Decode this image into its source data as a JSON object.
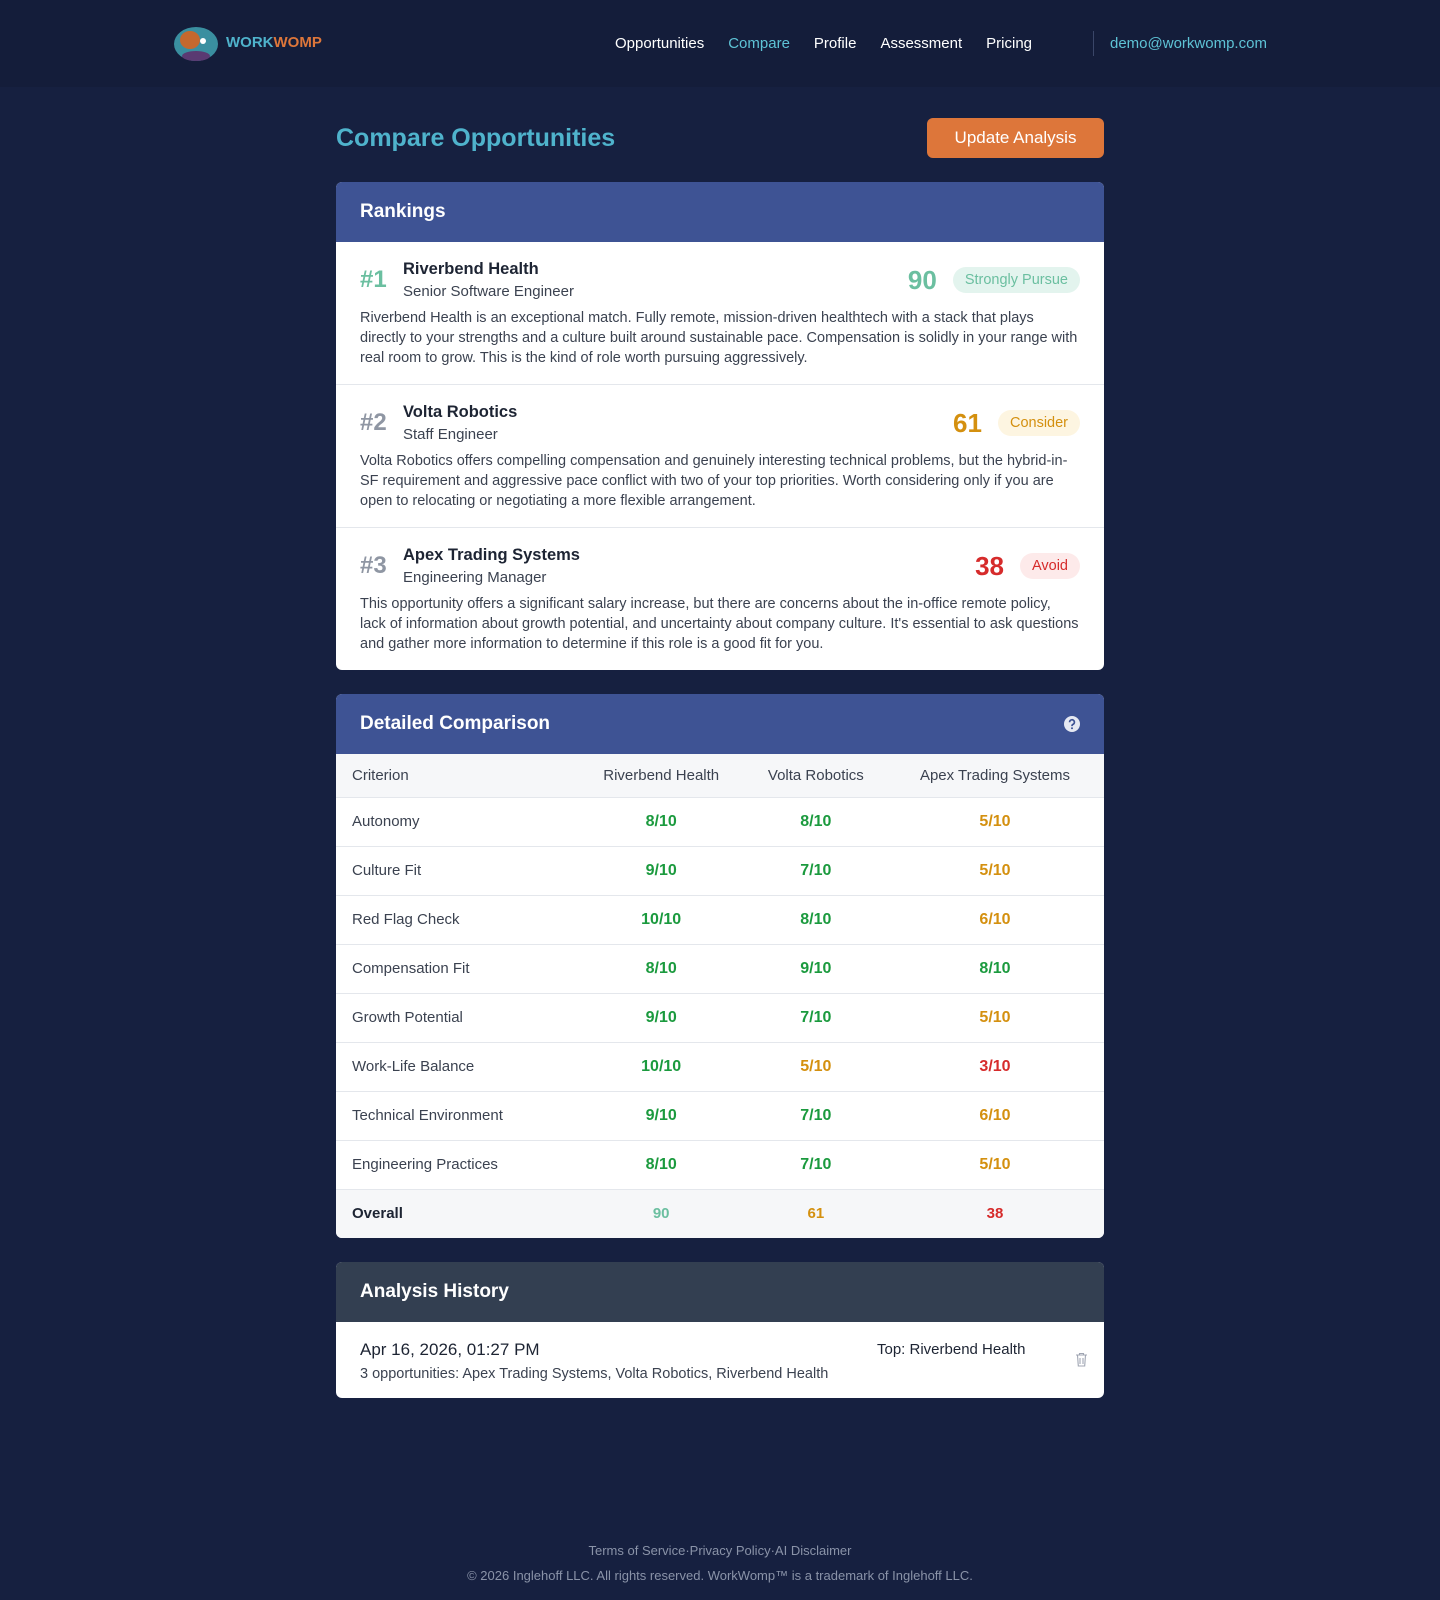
{
  "nav": {
    "brand": {
      "first": "WORK",
      "second": "WOMP"
    },
    "links": [
      "Opportunities",
      "Compare",
      "Profile",
      "Assessment",
      "Pricing"
    ],
    "active": 1,
    "user": "demo@workwomp.com"
  },
  "header": {
    "title": "Compare Opportunities",
    "button": "Update Analysis"
  },
  "rankings": {
    "title": "Rankings",
    "items": [
      {
        "rank": "#1",
        "company": "Riverbend Health",
        "role": "Senior Software Engineer",
        "score": "90",
        "badge": "Strongly Pursue",
        "color": "#6bbfa0",
        "badge_bg": "#e3f4ee",
        "summary": "Riverbend Health is an exceptional match. Fully remote, mission-driven healthtech with a stack that plays directly to your strengths and a culture built around sustainable pace. Compensation is solidly in your range with real room to grow. This is the kind of role worth pursuing aggressively."
      },
      {
        "rank": "#2",
        "company": "Volta Robotics",
        "role": "Staff Engineer",
        "score": "61",
        "badge": "Consider",
        "color": "#d4900f",
        "badge_bg": "#fdf5e1",
        "summary": "Volta Robotics offers compelling compensation and genuinely interesting technical problems, but the hybrid-in-SF requirement and aggressive pace conflict with two of your top priorities. Worth considering only if you are open to relocating or negotiating a more flexible arrangement."
      },
      {
        "rank": "#3",
        "company": "Apex Trading Systems",
        "role": "Engineering Manager",
        "score": "38",
        "badge": "Avoid",
        "color": "#d62b2b",
        "badge_bg": "#fdeaea",
        "summary": "This opportunity offers a significant salary increase, but there are concerns about the in-office remote policy, lack of information about growth potential, and uncertainty about company culture. It's essential to ask questions and gather more information to determine if this role is a good fit for you."
      }
    ]
  },
  "comparison": {
    "title": "Detailed Comparison",
    "columns": [
      "Criterion",
      "Riverbend Health",
      "Volta Robotics",
      "Apex Trading Systems"
    ],
    "rows": [
      [
        "Autonomy",
        "8/10",
        "8/10",
        "5/10"
      ],
      [
        "Culture Fit",
        "9/10",
        "7/10",
        "5/10"
      ],
      [
        "Red Flag Check",
        "10/10",
        "8/10",
        "6/10"
      ],
      [
        "Compensation Fit",
        "8/10",
        "9/10",
        "8/10"
      ],
      [
        "Growth Potential",
        "9/10",
        "7/10",
        "5/10"
      ],
      [
        "Work-Life Balance",
        "10/10",
        "5/10",
        "3/10"
      ],
      [
        "Technical Environment",
        "9/10",
        "7/10",
        "6/10"
      ],
      [
        "Engineering Practices",
        "8/10",
        "7/10",
        "5/10"
      ]
    ],
    "overall": [
      "Overall",
      "90",
      "61",
      "38"
    ],
    "overall_colors": [
      "#6bbfa0",
      "#d4900f",
      "#d62b2b"
    ]
  },
  "history": {
    "title": "Analysis History",
    "entries": [
      {
        "date": "Apr 16, 2026, 01:27 PM",
        "detail": "3 opportunities: Apex Trading Systems, Volta Robotics, Riverbend Health",
        "top": "Top: Riverbend Health"
      }
    ]
  },
  "footer": {
    "links": [
      "Terms of Service",
      "Privacy Policy",
      "AI Disclaimer"
    ],
    "copyright": "© 2026 Inglehoff LLC. All rights reserved. WorkWomp™ is a trademark of Inglehoff LLC."
  }
}
